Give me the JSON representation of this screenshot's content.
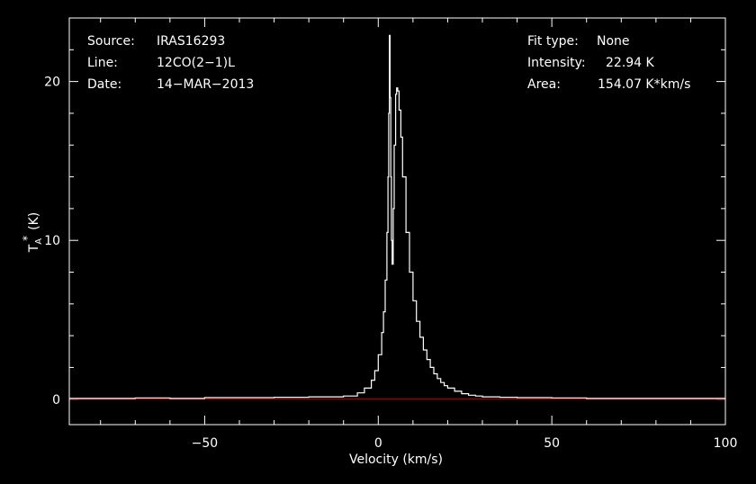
{
  "info": {
    "left": [
      {
        "label": "Source:",
        "value": "IRAS16293"
      },
      {
        "label": "Line:",
        "value": "12CO(2−1)L"
      },
      {
        "label": "Date:",
        "value": "14−MAR−2013"
      }
    ],
    "right": [
      {
        "label": "Fit type:",
        "value": "None"
      },
      {
        "label": "Intensity:",
        "value": "22.94 K"
      },
      {
        "label": "Area:",
        "value": "154.07 K*km/s"
      }
    ]
  },
  "chart_data": {
    "type": "line",
    "title": "",
    "xlabel": "Velocity (km/s)",
    "ylabel_main": "T",
    "ylabel_sub": "A",
    "ylabel_sup": "*",
    "ylabel_unit": "(K)",
    "xlim": [
      -89,
      100
    ],
    "ylim": [
      -1.6,
      24
    ],
    "x_ticks": [
      {
        "value": -50,
        "label": "−50"
      },
      {
        "value": 0,
        "label": "0"
      },
      {
        "value": 50,
        "label": "50"
      },
      {
        "value": 100,
        "label": "100"
      }
    ],
    "y_ticks": [
      {
        "value": 0,
        "label": "0"
      },
      {
        "value": 10,
        "label": "10"
      },
      {
        "value": 20,
        "label": "20"
      }
    ],
    "x_minor_step": 10,
    "y_minor_step": 2,
    "baseline": {
      "value": 0,
      "color": "#cc0000"
    },
    "line_color": "#ffffff",
    "axis_color": "#ffffff",
    "series": [
      {
        "x": [
          -89,
          -80,
          -70,
          -60,
          -50,
          -40,
          -30,
          -20,
          -10,
          -6,
          -4,
          -2,
          -1,
          0,
          1,
          1.5,
          2,
          2.5,
          2.8,
          3.0,
          3.2,
          3.4,
          3.6,
          3.8,
          4.0,
          4.3,
          4.6,
          5.0,
          5.3,
          5.6,
          6.0,
          6.5,
          7,
          8,
          9,
          10,
          11,
          12,
          13,
          14,
          15,
          16,
          17,
          18,
          19,
          20,
          22,
          24,
          26,
          28,
          30,
          35,
          40,
          50,
          60,
          70,
          80,
          90,
          100
        ],
        "y": [
          0.05,
          0.05,
          0.08,
          0.05,
          0.1,
          0.1,
          0.12,
          0.15,
          0.2,
          0.4,
          0.7,
          1.2,
          1.8,
          2.8,
          4.2,
          5.5,
          7.5,
          10.5,
          14,
          18,
          22.9,
          19,
          14,
          10,
          8.5,
          12,
          16,
          19.2,
          19.6,
          19.4,
          18.2,
          16.5,
          14,
          10.5,
          8,
          6.2,
          4.9,
          3.9,
          3.1,
          2.5,
          2.0,
          1.6,
          1.3,
          1.05,
          0.85,
          0.7,
          0.5,
          0.35,
          0.25,
          0.2,
          0.15,
          0.12,
          0.1,
          0.08,
          0.05,
          0.05,
          0.05,
          0.05,
          0.05
        ]
      }
    ]
  }
}
